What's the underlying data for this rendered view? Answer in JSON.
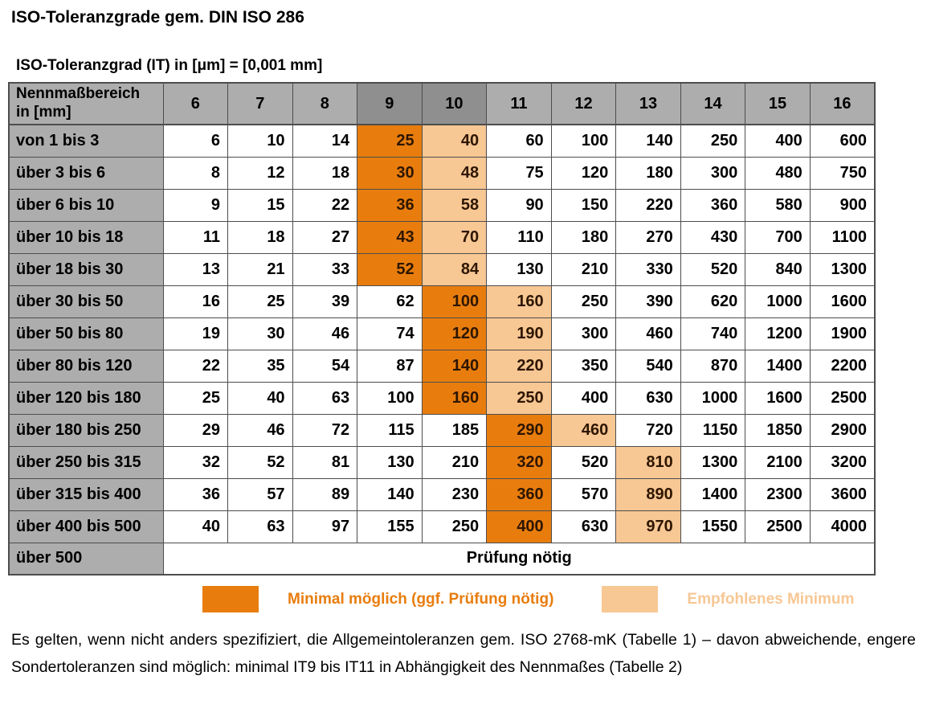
{
  "page": {
    "title": "ISO-Toleranzgrade gem. DIN ISO 286",
    "subtitle": "ISO-Toleranzgrad (IT) in [μm] = [0,001 mm]",
    "footer_note": "Es gelten, wenn nicht anders spezifiziert, die Allgemeintoleranzen gem. ISO 2768-mK (Tabelle 1) – davon abweichende, engere Sondertoleranzen sind möglich: minimal IT9 bis IT11 in Abhängigkeit des Nennmaßes (Tabelle 2)"
  },
  "colors": {
    "minimal_highlight": "#E87D0E",
    "recommended_highlight": "#F7C794",
    "header_gray": "#ADADAD",
    "header_gray_dark": "#8F8F8F",
    "border": "#4D4D4D"
  },
  "legend": {
    "items": [
      {
        "label": "Minimal möglich (ggf. Prüfung nötig)",
        "style": "minimal"
      },
      {
        "label": "Empfohlenes Minimum",
        "style": "recommended"
      }
    ]
  },
  "table": {
    "corner_header": "Nennmaßbereich\nin [mm]",
    "columns": [
      "6",
      "7",
      "8",
      "9",
      "10",
      "11",
      "12",
      "13",
      "14",
      "15",
      "16"
    ],
    "dark_columns": [
      "9",
      "10"
    ],
    "rows": [
      {
        "label": "von 1 bis 3",
        "values": [
          "6",
          "10",
          "14",
          "25",
          "40",
          "60",
          "100",
          "140",
          "250",
          "400",
          "600"
        ],
        "minimal_col": "9",
        "recommended_col": "10"
      },
      {
        "label": "über 3 bis 6",
        "values": [
          "8",
          "12",
          "18",
          "30",
          "48",
          "75",
          "120",
          "180",
          "300",
          "480",
          "750"
        ],
        "minimal_col": "9",
        "recommended_col": "10"
      },
      {
        "label": "über 6 bis 10",
        "values": [
          "9",
          "15",
          "22",
          "36",
          "58",
          "90",
          "150",
          "220",
          "360",
          "580",
          "900"
        ],
        "minimal_col": "9",
        "recommended_col": "10"
      },
      {
        "label": "über 10 bis 18",
        "values": [
          "11",
          "18",
          "27",
          "43",
          "70",
          "110",
          "180",
          "270",
          "430",
          "700",
          "1100"
        ],
        "minimal_col": "9",
        "recommended_col": "10"
      },
      {
        "label": "über 18 bis 30",
        "values": [
          "13",
          "21",
          "33",
          "52",
          "84",
          "130",
          "210",
          "330",
          "520",
          "840",
          "1300"
        ],
        "minimal_col": "9",
        "recommended_col": "10"
      },
      {
        "label": "über 30 bis 50",
        "values": [
          "16",
          "25",
          "39",
          "62",
          "100",
          "160",
          "250",
          "390",
          "620",
          "1000",
          "1600"
        ],
        "minimal_col": "10",
        "recommended_col": "11"
      },
      {
        "label": "über 50 bis 80",
        "values": [
          "19",
          "30",
          "46",
          "74",
          "120",
          "190",
          "300",
          "460",
          "740",
          "1200",
          "1900"
        ],
        "minimal_col": "10",
        "recommended_col": "11"
      },
      {
        "label": "über 80 bis 120",
        "values": [
          "22",
          "35",
          "54",
          "87",
          "140",
          "220",
          "350",
          "540",
          "870",
          "1400",
          "2200"
        ],
        "minimal_col": "10",
        "recommended_col": "11"
      },
      {
        "label": "über 120 bis 180",
        "values": [
          "25",
          "40",
          "63",
          "100",
          "160",
          "250",
          "400",
          "630",
          "1000",
          "1600",
          "2500"
        ],
        "minimal_col": "10",
        "recommended_col": "11"
      },
      {
        "label": "über 180 bis 250",
        "values": [
          "29",
          "46",
          "72",
          "115",
          "185",
          "290",
          "460",
          "720",
          "1150",
          "1850",
          "2900"
        ],
        "minimal_col": "11",
        "recommended_col": "12"
      },
      {
        "label": "über 250 bis 315",
        "values": [
          "32",
          "52",
          "81",
          "130",
          "210",
          "320",
          "520",
          "810",
          "1300",
          "2100",
          "3200"
        ],
        "minimal_col": "11",
        "recommended_col": "13"
      },
      {
        "label": "über 315 bis 400",
        "values": [
          "36",
          "57",
          "89",
          "140",
          "230",
          "360",
          "570",
          "890",
          "1400",
          "2300",
          "3600"
        ],
        "minimal_col": "11",
        "recommended_col": "13"
      },
      {
        "label": "über 400 bis 500",
        "values": [
          "40",
          "63",
          "97",
          "155",
          "250",
          "400",
          "630",
          "970",
          "1550",
          "2500",
          "4000"
        ],
        "minimal_col": "11",
        "recommended_col": "13"
      }
    ],
    "merged_row": {
      "label": "über 500",
      "value": "Prüfung nötig"
    }
  }
}
